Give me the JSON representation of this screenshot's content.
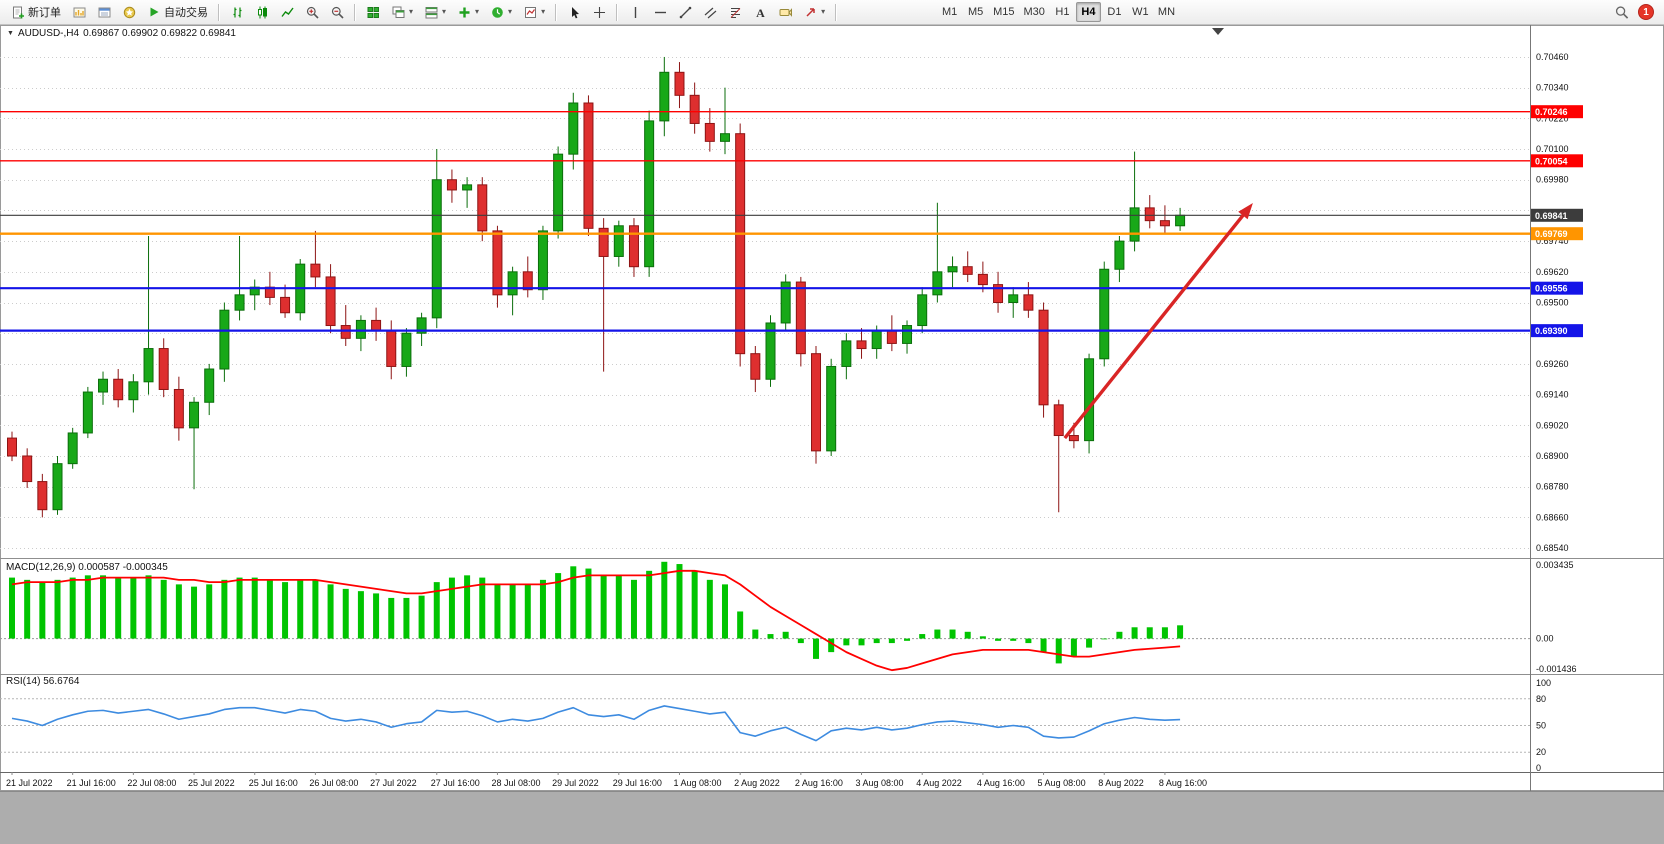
{
  "toolbar": {
    "new_order_label": "新订单",
    "autotrading_label": "自动交易",
    "timeframe_buttons": [
      "M1",
      "M5",
      "M15",
      "M30",
      "H1",
      "H4",
      "D1",
      "W1",
      "MN"
    ],
    "active_timeframe": "H4",
    "notification_count": "1",
    "icons": [
      "new-order-icon",
      "charts-window-icon",
      "market-watch-icon",
      "navigator-icon",
      "autotrading-play-icon",
      "bar-chart-icon",
      "candlestick-icon",
      "line-chart-icon",
      "zoom-in-icon",
      "zoom-out-icon",
      "tile-windows-icon",
      "cascade-windows-icon",
      "arrange-windows-icon",
      "add-indicator-icon",
      "periods-clock-icon",
      "templates-icon",
      "cursor-icon",
      "crosshair-icon",
      "vertical-line-icon",
      "horizontal-line-icon",
      "trendline-icon",
      "channel-icon",
      "fibonacci-icon",
      "text-icon",
      "label-icon",
      "shapes-arrow-icon",
      "search-icon"
    ]
  },
  "chart": {
    "symbol_label": "AUDUSD-,H4",
    "ohlc_label": "0.69867 0.69902 0.69822 0.69841"
  },
  "indicators": {
    "macd_label": "MACD(12,26,9) 0.000587 -0.000345",
    "rsi_label": "RSI(14) 56.6764"
  },
  "chart_data": {
    "type": "candlestick",
    "symbol": "AUDUSD-",
    "timeframe": "H4",
    "current_ohlc": {
      "open": 0.69867,
      "high": 0.69902,
      "low": 0.69822,
      "close": 0.69841
    },
    "price_axis": {
      "max": 0.70581,
      "min": 0.68509,
      "grid": [
        0.7046,
        0.7034,
        0.7022,
        0.701,
        0.6998,
        0.6986,
        0.6974,
        0.6962,
        0.695,
        0.6938,
        0.6926,
        0.6914,
        0.6902,
        0.689,
        0.6878,
        0.6866,
        0.6854
      ]
    },
    "time_labels": [
      "21 Jul 2022",
      "21 Jul 16:00",
      "22 Jul 08:00",
      "25 Jul 2022",
      "25 Jul 16:00",
      "26 Jul 08:00",
      "27 Jul 2022",
      "27 Jul 16:00",
      "28 Jul 08:00",
      "29 Jul 2022",
      "29 Jul 16:00",
      "1 Aug 08:00",
      "2 Aug 2022",
      "2 Aug 16:00",
      "3 Aug 08:00",
      "4 Aug 2022",
      "4 Aug 16:00",
      "5 Aug 08:00",
      "8 Aug 2022",
      "8 Aug 16:00"
    ],
    "bars_per_label": 4,
    "candles": [
      [
        0.6897,
        0.68995,
        0.6888,
        0.689
      ],
      [
        0.689,
        0.6893,
        0.68775,
        0.688
      ],
      [
        0.688,
        0.6883,
        0.6866,
        0.6869
      ],
      [
        0.6869,
        0.689,
        0.6867,
        0.6887
      ],
      [
        0.6887,
        0.6901,
        0.6885,
        0.6899
      ],
      [
        0.6899,
        0.6917,
        0.6897,
        0.6915
      ],
      [
        0.6915,
        0.6923,
        0.691,
        0.692
      ],
      [
        0.692,
        0.6924,
        0.6909,
        0.6912
      ],
      [
        0.6912,
        0.6922,
        0.6907,
        0.6919
      ],
      [
        0.6919,
        0.6976,
        0.6914,
        0.6932
      ],
      [
        0.6932,
        0.6936,
        0.6913,
        0.6916
      ],
      [
        0.6916,
        0.6921,
        0.6896,
        0.6901
      ],
      [
        0.6901,
        0.6913,
        0.6877,
        0.6911
      ],
      [
        0.6911,
        0.6926,
        0.6906,
        0.6924
      ],
      [
        0.6924,
        0.695,
        0.6919,
        0.6947
      ],
      [
        0.6947,
        0.6976,
        0.6943,
        0.6953
      ],
      [
        0.6953,
        0.6959,
        0.6947,
        0.6956
      ],
      [
        0.6956,
        0.6962,
        0.6949,
        0.6952
      ],
      [
        0.6952,
        0.6957,
        0.6944,
        0.6946
      ],
      [
        0.6946,
        0.6967,
        0.6943,
        0.6965
      ],
      [
        0.6965,
        0.6978,
        0.6956,
        0.696
      ],
      [
        0.696,
        0.6965,
        0.6938,
        0.6941
      ],
      [
        0.6941,
        0.6949,
        0.6933,
        0.6936
      ],
      [
        0.6936,
        0.6945,
        0.6931,
        0.6943
      ],
      [
        0.6943,
        0.6948,
        0.6935,
        0.6939
      ],
      [
        0.6939,
        0.6943,
        0.692,
        0.6925
      ],
      [
        0.6925,
        0.694,
        0.6921,
        0.6938
      ],
      [
        0.6938,
        0.6946,
        0.6933,
        0.6944
      ],
      [
        0.6944,
        0.701,
        0.694,
        0.6998
      ],
      [
        0.6998,
        0.7002,
        0.6989,
        0.6994
      ],
      [
        0.6994,
        0.6999,
        0.6987,
        0.6996
      ],
      [
        0.6996,
        0.6999,
        0.6974,
        0.6978
      ],
      [
        0.6978,
        0.698,
        0.6948,
        0.6953
      ],
      [
        0.6953,
        0.6964,
        0.6945,
        0.6962
      ],
      [
        0.6962,
        0.6968,
        0.6952,
        0.6955
      ],
      [
        0.6955,
        0.698,
        0.6951,
        0.6978
      ],
      [
        0.6978,
        0.7011,
        0.6975,
        0.7008
      ],
      [
        0.7008,
        0.7032,
        0.7002,
        0.7028
      ],
      [
        0.7028,
        0.7031,
        0.6976,
        0.6979
      ],
      [
        0.6979,
        0.6983,
        0.6923,
        0.6968
      ],
      [
        0.6968,
        0.6982,
        0.6964,
        0.698
      ],
      [
        0.698,
        0.6983,
        0.696,
        0.6964
      ],
      [
        0.6964,
        0.7025,
        0.696,
        0.7021
      ],
      [
        0.7021,
        0.7046,
        0.7015,
        0.704
      ],
      [
        0.704,
        0.7044,
        0.7026,
        0.7031
      ],
      [
        0.7031,
        0.7036,
        0.7016,
        0.702
      ],
      [
        0.702,
        0.7026,
        0.7009,
        0.7013
      ],
      [
        0.7013,
        0.7034,
        0.7008,
        0.7016
      ],
      [
        0.7016,
        0.702,
        0.6925,
        0.693
      ],
      [
        0.693,
        0.6933,
        0.6915,
        0.692
      ],
      [
        0.692,
        0.6945,
        0.6917,
        0.6942
      ],
      [
        0.6942,
        0.6961,
        0.6939,
        0.6958
      ],
      [
        0.6958,
        0.696,
        0.6925,
        0.693
      ],
      [
        0.693,
        0.6933,
        0.6887,
        0.6892
      ],
      [
        0.6892,
        0.6928,
        0.689,
        0.6925
      ],
      [
        0.6925,
        0.6938,
        0.692,
        0.6935
      ],
      [
        0.6935,
        0.694,
        0.6928,
        0.6932
      ],
      [
        0.6932,
        0.6941,
        0.6928,
        0.6939
      ],
      [
        0.6939,
        0.6945,
        0.6931,
        0.6934
      ],
      [
        0.6934,
        0.6943,
        0.693,
        0.6941
      ],
      [
        0.6941,
        0.6956,
        0.6938,
        0.6953
      ],
      [
        0.6953,
        0.6989,
        0.695,
        0.6962
      ],
      [
        0.6962,
        0.6968,
        0.6956,
        0.6964
      ],
      [
        0.6964,
        0.697,
        0.6958,
        0.6961
      ],
      [
        0.6961,
        0.6966,
        0.6954,
        0.6957
      ],
      [
        0.6957,
        0.6962,
        0.6946,
        0.695
      ],
      [
        0.695,
        0.6956,
        0.6944,
        0.6953
      ],
      [
        0.6953,
        0.6958,
        0.6944,
        0.6947
      ],
      [
        0.6947,
        0.695,
        0.6905,
        0.691
      ],
      [
        0.691,
        0.6912,
        0.6868,
        0.6898
      ],
      [
        0.6898,
        0.6903,
        0.6893,
        0.6896
      ],
      [
        0.6896,
        0.693,
        0.6891,
        0.6928
      ],
      [
        0.6928,
        0.6966,
        0.6925,
        0.6963
      ],
      [
        0.6963,
        0.6976,
        0.6958,
        0.6974
      ],
      [
        0.6974,
        0.7009,
        0.697,
        0.6987
      ],
      [
        0.6987,
        0.6992,
        0.6979,
        0.6982
      ],
      [
        0.6982,
        0.6988,
        0.6977,
        0.698
      ],
      [
        0.698,
        0.6987,
        0.6978,
        0.69841
      ]
    ],
    "colors": {
      "bull": "#0b6e0b",
      "bull_fill": "#18a818",
      "bear": "#8d1414",
      "bear_fill": "#de2f2f",
      "macd_hist": "#00c400",
      "macd_signal": "#ff0000",
      "rsi": "#3d8be0",
      "grid": "#cccccc"
    },
    "hlines": [
      {
        "price": 0.70246,
        "color": "#fe0000",
        "width": 1.4,
        "tag": "0.70246"
      },
      {
        "price": 0.70054,
        "color": "#fe0000",
        "width": 1.4,
        "tag": "0.70054"
      },
      {
        "price": 0.69841,
        "color": "#3c3c3c",
        "width": 1.1,
        "tag": "0.69841",
        "role": "bid-price-line"
      },
      {
        "price": 0.69769,
        "color": "#ff9500",
        "width": 2.4,
        "tag": "0.69769"
      },
      {
        "price": 0.69556,
        "color": "#1414e8",
        "width": 2.2,
        "tag": "0.69556"
      },
      {
        "price": 0.6939,
        "color": "#1414e8",
        "width": 2.2,
        "tag": "0.69390"
      }
    ],
    "arrow": {
      "from_bar": 69.4,
      "from_price": 0.6897,
      "to_bar": 81.8,
      "to_price": 0.69889,
      "color": "#d92525"
    },
    "macd": {
      "params": "12,26,9",
      "value": 0.000587,
      "signal_value": -0.000345,
      "scale": {
        "max": 0.003435,
        "max_label": "0.003435",
        "zero_label": "0.00",
        "min": -0.001436,
        "min_label": "-0.001436"
      },
      "hist": [
        0.0027,
        0.0026,
        0.0025,
        0.0026,
        0.0027,
        0.0028,
        0.0028,
        0.0027,
        0.0027,
        0.0028,
        0.0026,
        0.0024,
        0.0023,
        0.0024,
        0.0026,
        0.0027,
        0.0027,
        0.0026,
        0.0025,
        0.0026,
        0.0026,
        0.0024,
        0.0022,
        0.0021,
        0.002,
        0.0018,
        0.0018,
        0.0019,
        0.0025,
        0.0027,
        0.0028,
        0.0027,
        0.0024,
        0.0024,
        0.0024,
        0.0026,
        0.0029,
        0.0032,
        0.0031,
        0.0028,
        0.0028,
        0.0026,
        0.003,
        0.0034,
        0.0033,
        0.003,
        0.0026,
        0.0024,
        0.0012,
        0.0004,
        0.0002,
        0.0003,
        -0.0002,
        -0.0009,
        -0.0006,
        -0.0003,
        -0.0003,
        -0.0002,
        -0.0002,
        -0.0001,
        0.0002,
        0.0004,
        0.0004,
        0.0003,
        0.0001,
        -0.0001,
        -0.0001,
        -0.0002,
        -0.0006,
        -0.0011,
        -0.0008,
        -0.0004,
        0.0,
        0.0003,
        0.0005,
        0.0005,
        0.0005,
        0.000587
      ],
      "signal": [
        0.0024,
        0.0025,
        0.0025,
        0.0025,
        0.0026,
        0.0026,
        0.0027,
        0.0027,
        0.0027,
        0.0027,
        0.0027,
        0.0026,
        0.0026,
        0.0025,
        0.0025,
        0.0026,
        0.0026,
        0.0026,
        0.0026,
        0.0026,
        0.0026,
        0.0025,
        0.0024,
        0.0023,
        0.0022,
        0.0021,
        0.002,
        0.002,
        0.0021,
        0.0022,
        0.0023,
        0.0024,
        0.0024,
        0.0024,
        0.0024,
        0.0024,
        0.0025,
        0.0027,
        0.0028,
        0.0028,
        0.0028,
        0.0028,
        0.0028,
        0.0029,
        0.003,
        0.003,
        0.0029,
        0.0028,
        0.0024,
        0.0019,
        0.0014,
        0.001,
        0.0006,
        0.0002,
        -0.0002,
        -0.0006,
        -0.0009,
        -0.0012,
        -0.0014,
        -0.0013,
        -0.0011,
        -0.0009,
        -0.0007,
        -0.0006,
        -0.0005,
        -0.0005,
        -0.0005,
        -0.0005,
        -0.0006,
        -0.0007,
        -0.0008,
        -0.0008,
        -0.0007,
        -0.0006,
        -0.0005,
        -0.00045,
        -0.0004,
        -0.000345
      ]
    },
    "rsi": {
      "period": 14,
      "value": 56.6764,
      "scale_labels": [
        100,
        80,
        50,
        20,
        0
      ],
      "levels": [
        80,
        50,
        20
      ],
      "values": [
        58,
        55,
        50,
        57,
        62,
        66,
        67,
        64,
        66,
        68,
        63,
        57,
        60,
        63,
        68,
        70,
        70,
        67,
        64,
        68,
        66,
        58,
        55,
        57,
        54,
        48,
        52,
        54,
        67,
        65,
        66,
        61,
        54,
        57,
        55,
        58,
        65,
        70,
        62,
        60,
        62,
        57,
        67,
        72,
        69,
        66,
        63,
        65,
        42,
        38,
        44,
        48,
        40,
        33,
        44,
        47,
        45,
        48,
        45,
        47,
        51,
        54,
        55,
        53,
        51,
        48,
        50,
        48,
        38,
        36,
        37,
        44,
        52,
        56,
        59,
        57,
        56,
        56.6764
      ]
    }
  }
}
